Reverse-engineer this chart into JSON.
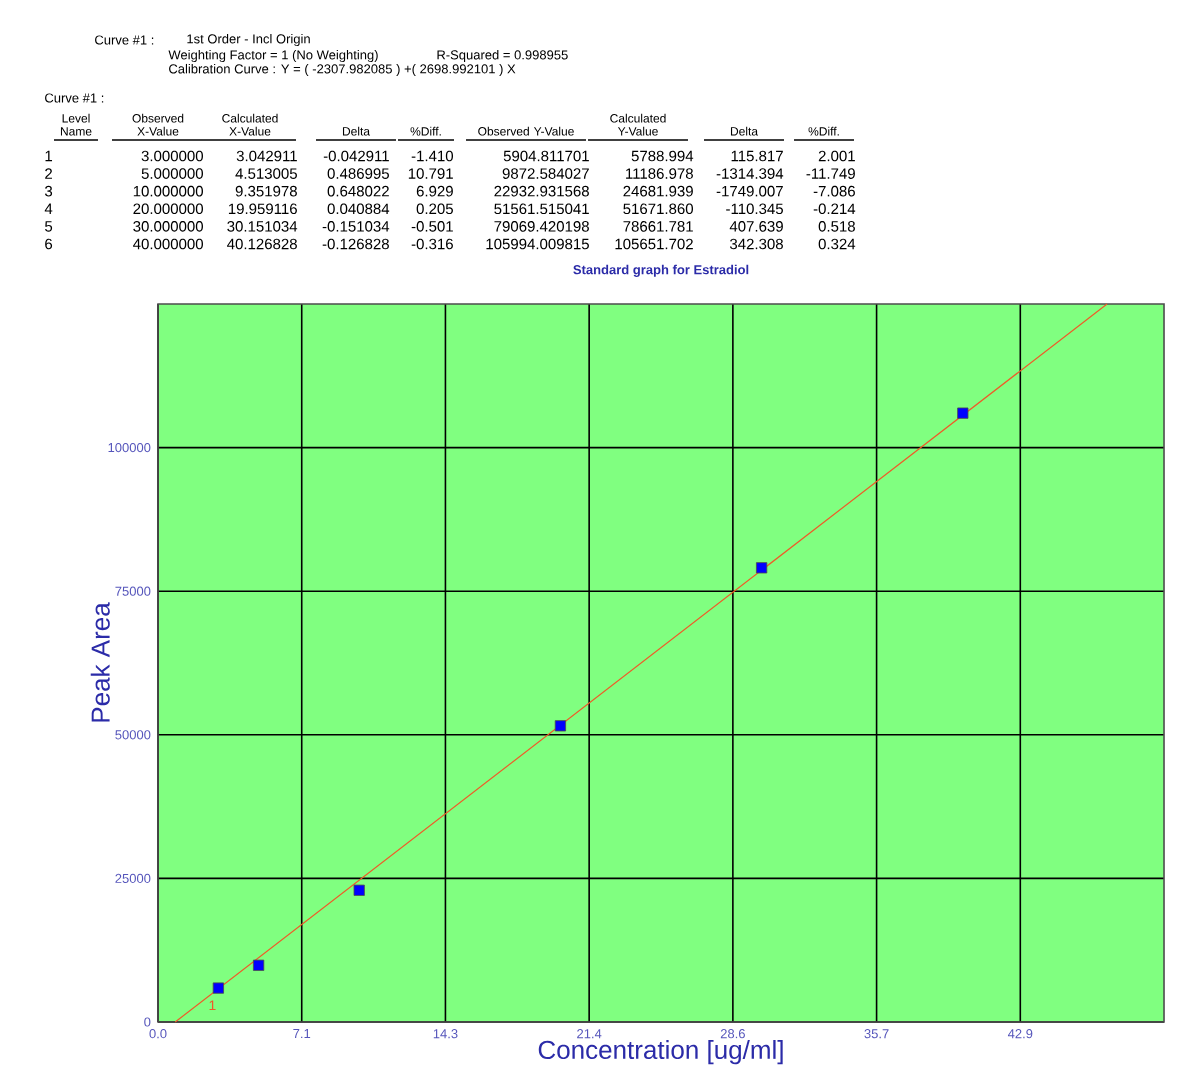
{
  "chart_data": {
    "type": "scatter",
    "title": "Standard graph for Estradiol",
    "xlabel": "Concentration  [ug/ml]",
    "ylabel": "Peak Area",
    "xlim": [
      0,
      50
    ],
    "ylim": [
      0,
      125000
    ],
    "xticks": [
      {
        "value": 0,
        "label": "0.0"
      },
      {
        "value": 7.142857,
        "label": "7.1"
      },
      {
        "value": 14.285714,
        "label": "14.3"
      },
      {
        "value": 21.428571,
        "label": "21.4"
      },
      {
        "value": 28.571429,
        "label": "28.6"
      },
      {
        "value": 35.714286,
        "label": "35.7"
      },
      {
        "value": 42.857143,
        "label": "42.9"
      }
    ],
    "yticks": [
      0,
      25000,
      50000,
      75000,
      100000
    ],
    "grid": true,
    "series": [
      {
        "marker": "square",
        "color": "#0000ff",
        "x": [
          3,
          5,
          10,
          20,
          30,
          40
        ],
        "values": [
          5904.811701,
          9872.584027,
          22932.931568,
          51561.515041,
          79069.420198,
          105994.009815
        ]
      },
      {
        "type": "line",
        "marker": "none",
        "color": "#f05a28",
        "x": [
          0.855,
          47.17
        ],
        "values": [
          0,
          125000
        ]
      }
    ],
    "annotations": [
      "Curve #1 :",
      "1st Order - Incl Origin",
      "Weighting Factor  = 1 (No Weighting)",
      "R-Squared = 0.998955",
      "Calibration Curve :  Y = ( -2307.982085 ) +( 2698.992101 ) X",
      "Curve #1 :",
      "Level Name",
      "Observed X-Value",
      "Calculated X-Value",
      "Delta",
      "%Diff.",
      "Observed Y-Value",
      "Calculated Y-Value",
      "Delta",
      "%Diff.",
      "1",
      "3.000000",
      "3.042911",
      "-0.042911",
      "-1.410",
      "5904.811701",
      "5788.994",
      "115.817",
      "2.001",
      "2",
      "5.000000",
      "4.513005",
      "0.486995",
      "10.791",
      "9872.584027",
      "11186.978",
      "-1314.394",
      "-11.749",
      "3",
      "10.000000",
      "9.351978",
      "0.648022",
      "6.929",
      "22932.931568",
      "24681.939",
      "-1749.007",
      "-7.086",
      "4",
      "20.000000",
      "19.959116",
      "0.040884",
      "0.205",
      "51561.515041",
      "51671.860",
      "-110.345",
      "-0.214",
      "5",
      "30.000000",
      "30.151034",
      "-0.151034",
      "-0.501",
      "79069.420198",
      "78661.781",
      "407.639",
      "0.518",
      "6",
      "40.000000",
      "40.126828",
      "-0.126828",
      "-0.316",
      "105994.009815",
      "105651.702",
      "342.308",
      "0.324",
      {
        "text": "1",
        "x": 3,
        "y": 5904.811701
      }
    ]
  }
}
